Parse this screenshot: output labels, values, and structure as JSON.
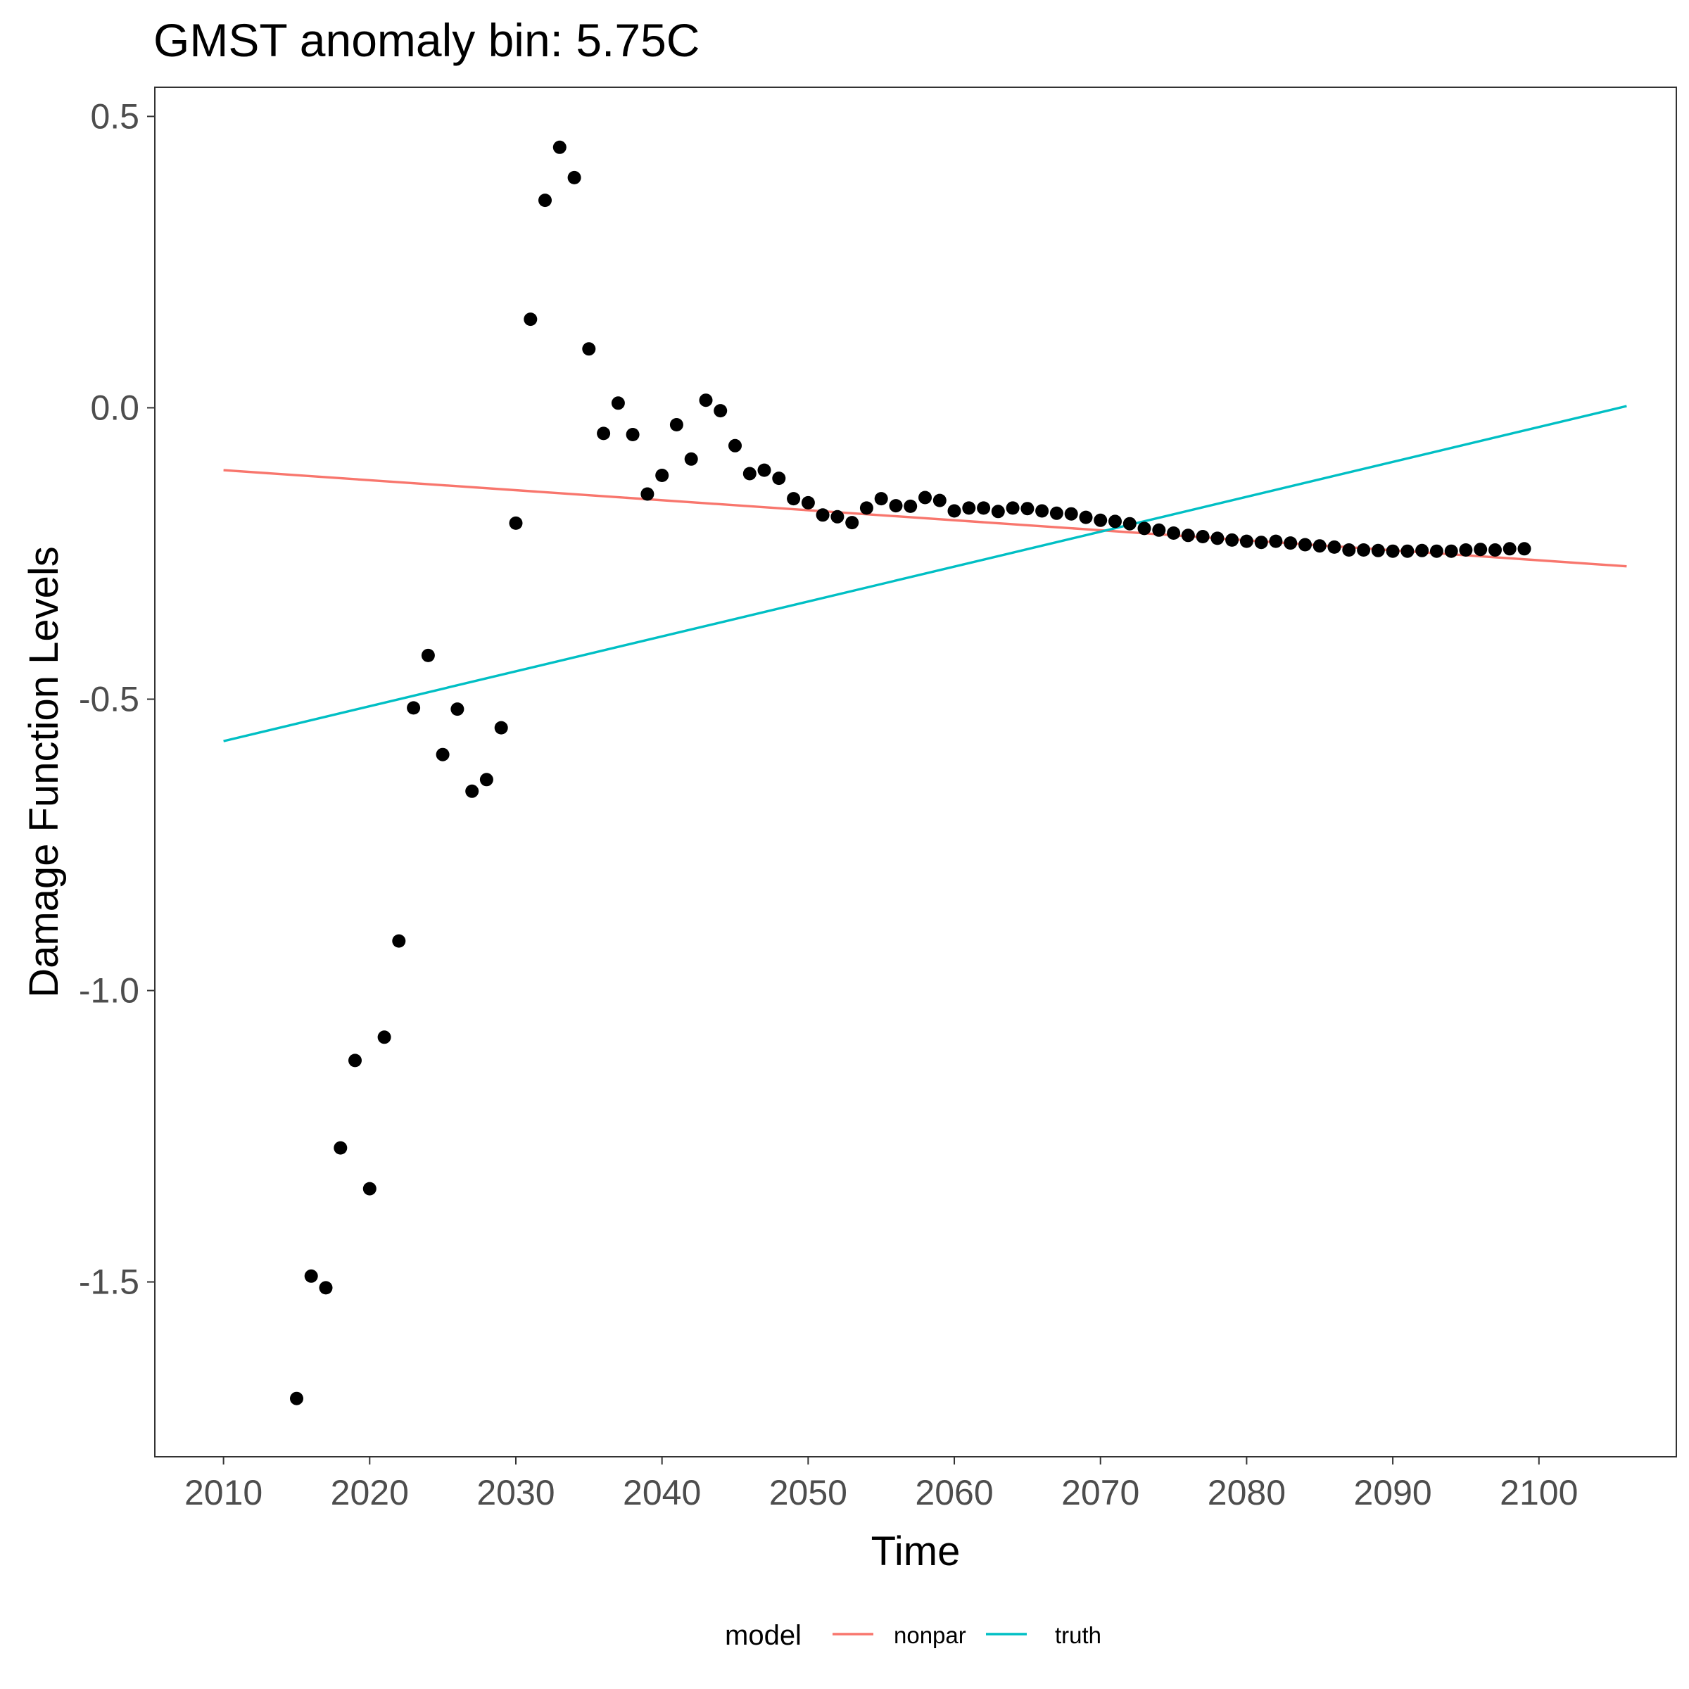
{
  "chart_data": {
    "type": "scatter",
    "title": "GMST anomaly bin: 5.75C",
    "xlabel": "Time",
    "ylabel": "Damage Function Levels",
    "xlim": [
      2005.3,
      2109.4
    ],
    "ylim": [
      -1.8,
      0.55
    ],
    "x_ticks": [
      2010,
      2020,
      2030,
      2040,
      2050,
      2060,
      2070,
      2080,
      2090,
      2100
    ],
    "y_ticks": [
      0.5,
      0.0,
      -0.5,
      -1.0,
      -1.5
    ],
    "y_tick_labels": [
      "0.5",
      "0.0",
      "-0.5",
      "-1.0",
      "-1.5"
    ],
    "grid": false,
    "legend": {
      "title": "model",
      "placement": "bottom",
      "entries": [
        {
          "label": "nonpar",
          "color": "#F8766D"
        },
        {
          "label": "truth",
          "color": "#00BFC4"
        }
      ]
    },
    "points": {
      "color": "#000000",
      "x": [
        2015,
        2016,
        2017,
        2018,
        2019,
        2020,
        2021,
        2022,
        2023,
        2024,
        2025,
        2026,
        2027,
        2028,
        2029,
        2030,
        2031,
        2032,
        2033,
        2034,
        2035,
        2036,
        2037,
        2038,
        2039,
        2040,
        2041,
        2042,
        2043,
        2044,
        2045,
        2046,
        2047,
        2048,
        2049,
        2050,
        2051,
        2052,
        2053,
        2054,
        2055,
        2056,
        2057,
        2058,
        2059,
        2060,
        2061,
        2062,
        2063,
        2064,
        2065,
        2066,
        2067,
        2068,
        2069,
        2070,
        2071,
        2072,
        2073,
        2074,
        2075,
        2076,
        2077,
        2078,
        2079,
        2080,
        2081,
        2082,
        2083,
        2084,
        2085,
        2086,
        2087,
        2088,
        2089,
        2090,
        2091,
        2092,
        2093,
        2094,
        2095,
        2096,
        2097,
        2098,
        2099
      ],
      "y": [
        -1.7,
        -1.49,
        -1.51,
        -1.27,
        -1.12,
        -1.34,
        -1.08,
        -0.915,
        -0.515,
        -0.425,
        -0.595,
        -0.517,
        -0.658,
        -0.638,
        -0.549,
        -0.198,
        0.152,
        0.356,
        0.447,
        0.395,
        0.101,
        -0.044,
        0.008,
        -0.046,
        -0.148,
        -0.116,
        -0.029,
        -0.088,
        0.013,
        -0.005,
        -0.065,
        -0.113,
        -0.107,
        -0.121,
        -0.156,
        -0.163,
        -0.184,
        -0.187,
        -0.197,
        -0.172,
        -0.156,
        -0.168,
        -0.169,
        -0.154,
        -0.159,
        -0.177,
        -0.172,
        -0.172,
        -0.178,
        -0.172,
        -0.173,
        -0.177,
        -0.181,
        -0.182,
        -0.188,
        -0.193,
        -0.195,
        -0.199,
        -0.207,
        -0.21,
        -0.215,
        -0.219,
        -0.221,
        -0.224,
        -0.227,
        -0.229,
        -0.231,
        -0.229,
        -0.232,
        -0.235,
        -0.237,
        -0.239,
        -0.244,
        -0.244,
        -0.245,
        -0.246,
        -0.246,
        -0.245,
        -0.246,
        -0.246,
        -0.244,
        -0.243,
        -0.244,
        -0.242,
        -0.242
      ]
    },
    "series": [
      {
        "name": "nonpar",
        "color": "#F8766D",
        "x": [
          2010,
          2106
        ],
        "y": [
          -0.107,
          -0.272
        ]
      },
      {
        "name": "truth",
        "color": "#00BFC4",
        "x": [
          2010,
          2106
        ],
        "y": [
          -0.572,
          0.003
        ]
      }
    ]
  }
}
